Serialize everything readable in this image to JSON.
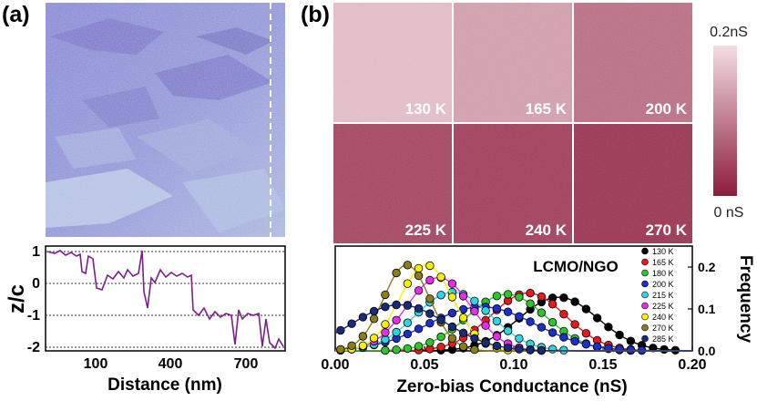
{
  "panel_a": {
    "label": "(a)",
    "profile": {
      "ylabel": "z/c",
      "xlabel": "Distance (nm)",
      "xticks": [
        "100",
        "400",
        "700"
      ],
      "yticks": [
        "1",
        "0",
        "-1",
        "-2"
      ]
    }
  },
  "panel_b": {
    "label": "(b)",
    "maps": [
      {
        "temp": "130 K",
        "brightness": 0.78
      },
      {
        "temp": "165 K",
        "brightness": 0.62
      },
      {
        "temp": "200 K",
        "brightness": 0.38
      },
      {
        "temp": "225 K",
        "brightness": 0.18
      },
      {
        "temp": "240 K",
        "brightness": 0.15
      },
      {
        "temp": "270 K",
        "brightness": 0.1
      }
    ],
    "colorbar": {
      "max_label": "0.2nS",
      "min_label": "0 nS",
      "top_color": "#f4dde4",
      "bottom_color": "#8c1c3a"
    }
  },
  "chart_data": {
    "type": "scatter",
    "title": "LCMO/NGO",
    "xlabel": "Zero-bias Conductance (nS)",
    "ylabel": "Frequency",
    "xlim": [
      0.0,
      0.2
    ],
    "ylim": [
      0.0,
      0.25
    ],
    "xticks": [
      "0.00",
      "0.05",
      "0.10",
      "0.15",
      "0.20"
    ],
    "yticks": [
      "0.0",
      "0.1",
      "0.2"
    ],
    "series": [
      {
        "name": "130 K",
        "color": "#000000",
        "center": 0.125,
        "width": 0.022,
        "peak": 0.128
      },
      {
        "name": "165 K",
        "color": "#e8191e",
        "center": 0.108,
        "width": 0.021,
        "peak": 0.138
      },
      {
        "name": "180 K",
        "color": "#2ec52c",
        "center": 0.096,
        "width": 0.022,
        "peak": 0.135
      },
      {
        "name": "200 K",
        "color": "#1c2fc8",
        "center": 0.082,
        "width": 0.03,
        "peak": 0.105
      },
      {
        "name": "215 K",
        "color": "#2fd4e0",
        "center": 0.066,
        "width": 0.021,
        "peak": 0.14
      },
      {
        "name": "225 K",
        "color": "#e62ee8",
        "center": 0.058,
        "width": 0.018,
        "peak": 0.175
      },
      {
        "name": "240 K",
        "color": "#f5f000",
        "center": 0.051,
        "width": 0.015,
        "peak": 0.205
      },
      {
        "name": "270 K",
        "color": "#8c7d1c",
        "center": 0.04,
        "width": 0.013,
        "peak": 0.205
      },
      {
        "name": "285 K",
        "color": "#1a2a78",
        "center": 0.036,
        "width": 0.026,
        "peak": 0.11
      }
    ]
  }
}
